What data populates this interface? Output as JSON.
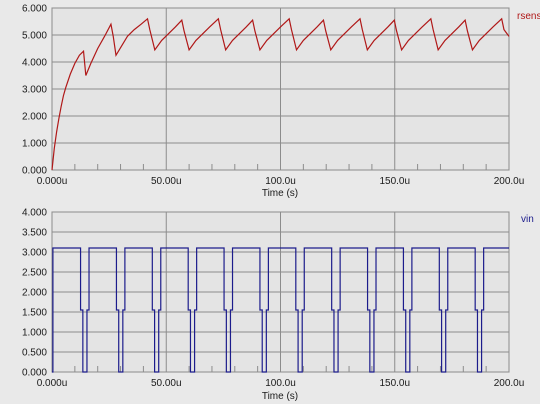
{
  "chart_data": [
    {
      "type": "line",
      "series_label": "rsens",
      "xlabel": "Time (s)",
      "xlim": [
        0,
        200
      ],
      "ylim": [
        0,
        6
      ],
      "x_ticks": [
        "0.000u",
        "50.00u",
        "100.0u",
        "150.0u",
        "200.0u"
      ],
      "y_ticks": [
        "0.000",
        "1.000",
        "2.000",
        "3.000",
        "4.000",
        "5.000",
        "6.000"
      ],
      "grid": true,
      "series": [
        {
          "name": "rsens",
          "color": "#b01818",
          "x": [
            0,
            1,
            2,
            3,
            4,
            5,
            6,
            8,
            10,
            12,
            13.8,
            14.8,
            17,
            20,
            23,
            25.8,
            26.8,
            28,
            30.5,
            33,
            36,
            39,
            41.8,
            42.8,
            45,
            48,
            51,
            54,
            56.8,
            57.8,
            60,
            63,
            66,
            69,
            72.8,
            73.8,
            76,
            79,
            82,
            85,
            87.8,
            88.8,
            91,
            94,
            97,
            100,
            103.8,
            104.8,
            107,
            110,
            113,
            116,
            118.8,
            119.8,
            122,
            125,
            128,
            131,
            134.8,
            135.8,
            138,
            141,
            144,
            147,
            149.8,
            150.8,
            153,
            156,
            159,
            162,
            165.8,
            166.8,
            169,
            172,
            175,
            178,
            180.8,
            181.8,
            184,
            187,
            190,
            193,
            196.8,
            197.8,
            200
          ],
          "y": [
            0.0,
            0.8,
            1.4,
            1.9,
            2.35,
            2.75,
            3.05,
            3.55,
            3.95,
            4.25,
            4.4,
            3.5,
            3.95,
            4.5,
            4.95,
            5.4,
            4.95,
            4.25,
            4.6,
            4.95,
            5.2,
            5.4,
            5.6,
            5.2,
            4.45,
            4.8,
            5.05,
            5.3,
            5.55,
            5.15,
            4.45,
            4.8,
            5.05,
            5.3,
            5.6,
            5.2,
            4.45,
            4.8,
            5.05,
            5.3,
            5.55,
            5.15,
            4.45,
            4.8,
            5.05,
            5.3,
            5.6,
            5.2,
            4.45,
            4.8,
            5.05,
            5.3,
            5.55,
            5.15,
            4.45,
            4.8,
            5.05,
            5.3,
            5.6,
            5.2,
            4.45,
            4.8,
            5.05,
            5.3,
            5.55,
            5.15,
            4.45,
            4.8,
            5.05,
            5.3,
            5.6,
            5.2,
            4.45,
            4.8,
            5.05,
            5.3,
            5.55,
            5.15,
            4.45,
            4.8,
            5.05,
            5.3,
            5.6,
            5.2,
            4.95
          ]
        }
      ]
    },
    {
      "type": "line",
      "series_label": "vin",
      "xlabel": "Time (s)",
      "xlim": [
        0,
        200
      ],
      "ylim": [
        0,
        4
      ],
      "x_ticks": [
        "0.000u",
        "50.00u",
        "100.0u",
        "150.0u",
        "200.0u"
      ],
      "y_ticks": [
        "0.000",
        "0.500",
        "1.000",
        "1.500",
        "2.000",
        "2.500",
        "3.000",
        "3.500",
        "4.000"
      ],
      "grid": true,
      "series": [
        {
          "name": "vin",
          "color": "#1c1c8c",
          "x": [
            0,
            0.4,
            0.4,
            12.5,
            12.5,
            13.5,
            13.5,
            15.3,
            15.3,
            16.2,
            16.2,
            28.2,
            28.2,
            29.2,
            29.2,
            31,
            31,
            31.9,
            31.9,
            43.9,
            43.9,
            44.9,
            44.9,
            46.7,
            46.7,
            47.6,
            47.6,
            59.6,
            59.6,
            60.6,
            60.6,
            62.4,
            62.4,
            63.3,
            63.3,
            75.3,
            75.3,
            76.3,
            76.3,
            78.1,
            78.1,
            79,
            79,
            91,
            91,
            92,
            92,
            93.8,
            93.8,
            94.7,
            94.7,
            106.7,
            106.7,
            107.7,
            107.7,
            109.5,
            109.5,
            110.4,
            110.4,
            122.4,
            122.4,
            123.4,
            123.4,
            125.2,
            125.2,
            126.1,
            126.1,
            138.1,
            138.1,
            139.1,
            139.1,
            140.9,
            140.9,
            141.8,
            141.8,
            153.8,
            153.8,
            154.8,
            154.8,
            156.6,
            156.6,
            157.5,
            157.5,
            169.5,
            169.5,
            170.5,
            170.5,
            172.3,
            172.3,
            173.2,
            173.2,
            185.2,
            185.2,
            186.2,
            186.2,
            188,
            188,
            188.9,
            188.9,
            200
          ],
          "y": [
            0,
            0,
            3.1,
            3.1,
            1.55,
            1.55,
            0,
            0,
            1.55,
            1.55,
            3.1,
            3.1,
            1.55,
            1.55,
            0,
            0,
            1.55,
            1.55,
            3.1,
            3.1,
            1.55,
            1.55,
            0,
            0,
            1.55,
            1.55,
            3.1,
            3.1,
            1.55,
            1.55,
            0,
            0,
            1.55,
            1.55,
            3.1,
            3.1,
            1.55,
            1.55,
            0,
            0,
            1.55,
            1.55,
            3.1,
            3.1,
            1.55,
            1.55,
            0,
            0,
            1.55,
            1.55,
            3.1,
            3.1,
            1.55,
            1.55,
            0,
            0,
            1.55,
            1.55,
            3.1,
            3.1,
            1.55,
            1.55,
            0,
            0,
            1.55,
            1.55,
            3.1,
            3.1,
            1.55,
            1.55,
            0,
            0,
            1.55,
            1.55,
            3.1,
            3.1,
            1.55,
            1.55,
            0,
            0,
            1.55,
            1.55,
            3.1,
            3.1,
            1.55,
            1.55,
            0,
            0,
            1.55,
            1.55,
            3.1,
            3.1,
            1.55,
            1.55,
            0,
            0,
            1.55,
            1.55,
            3.1,
            3.1
          ]
        }
      ]
    }
  ]
}
